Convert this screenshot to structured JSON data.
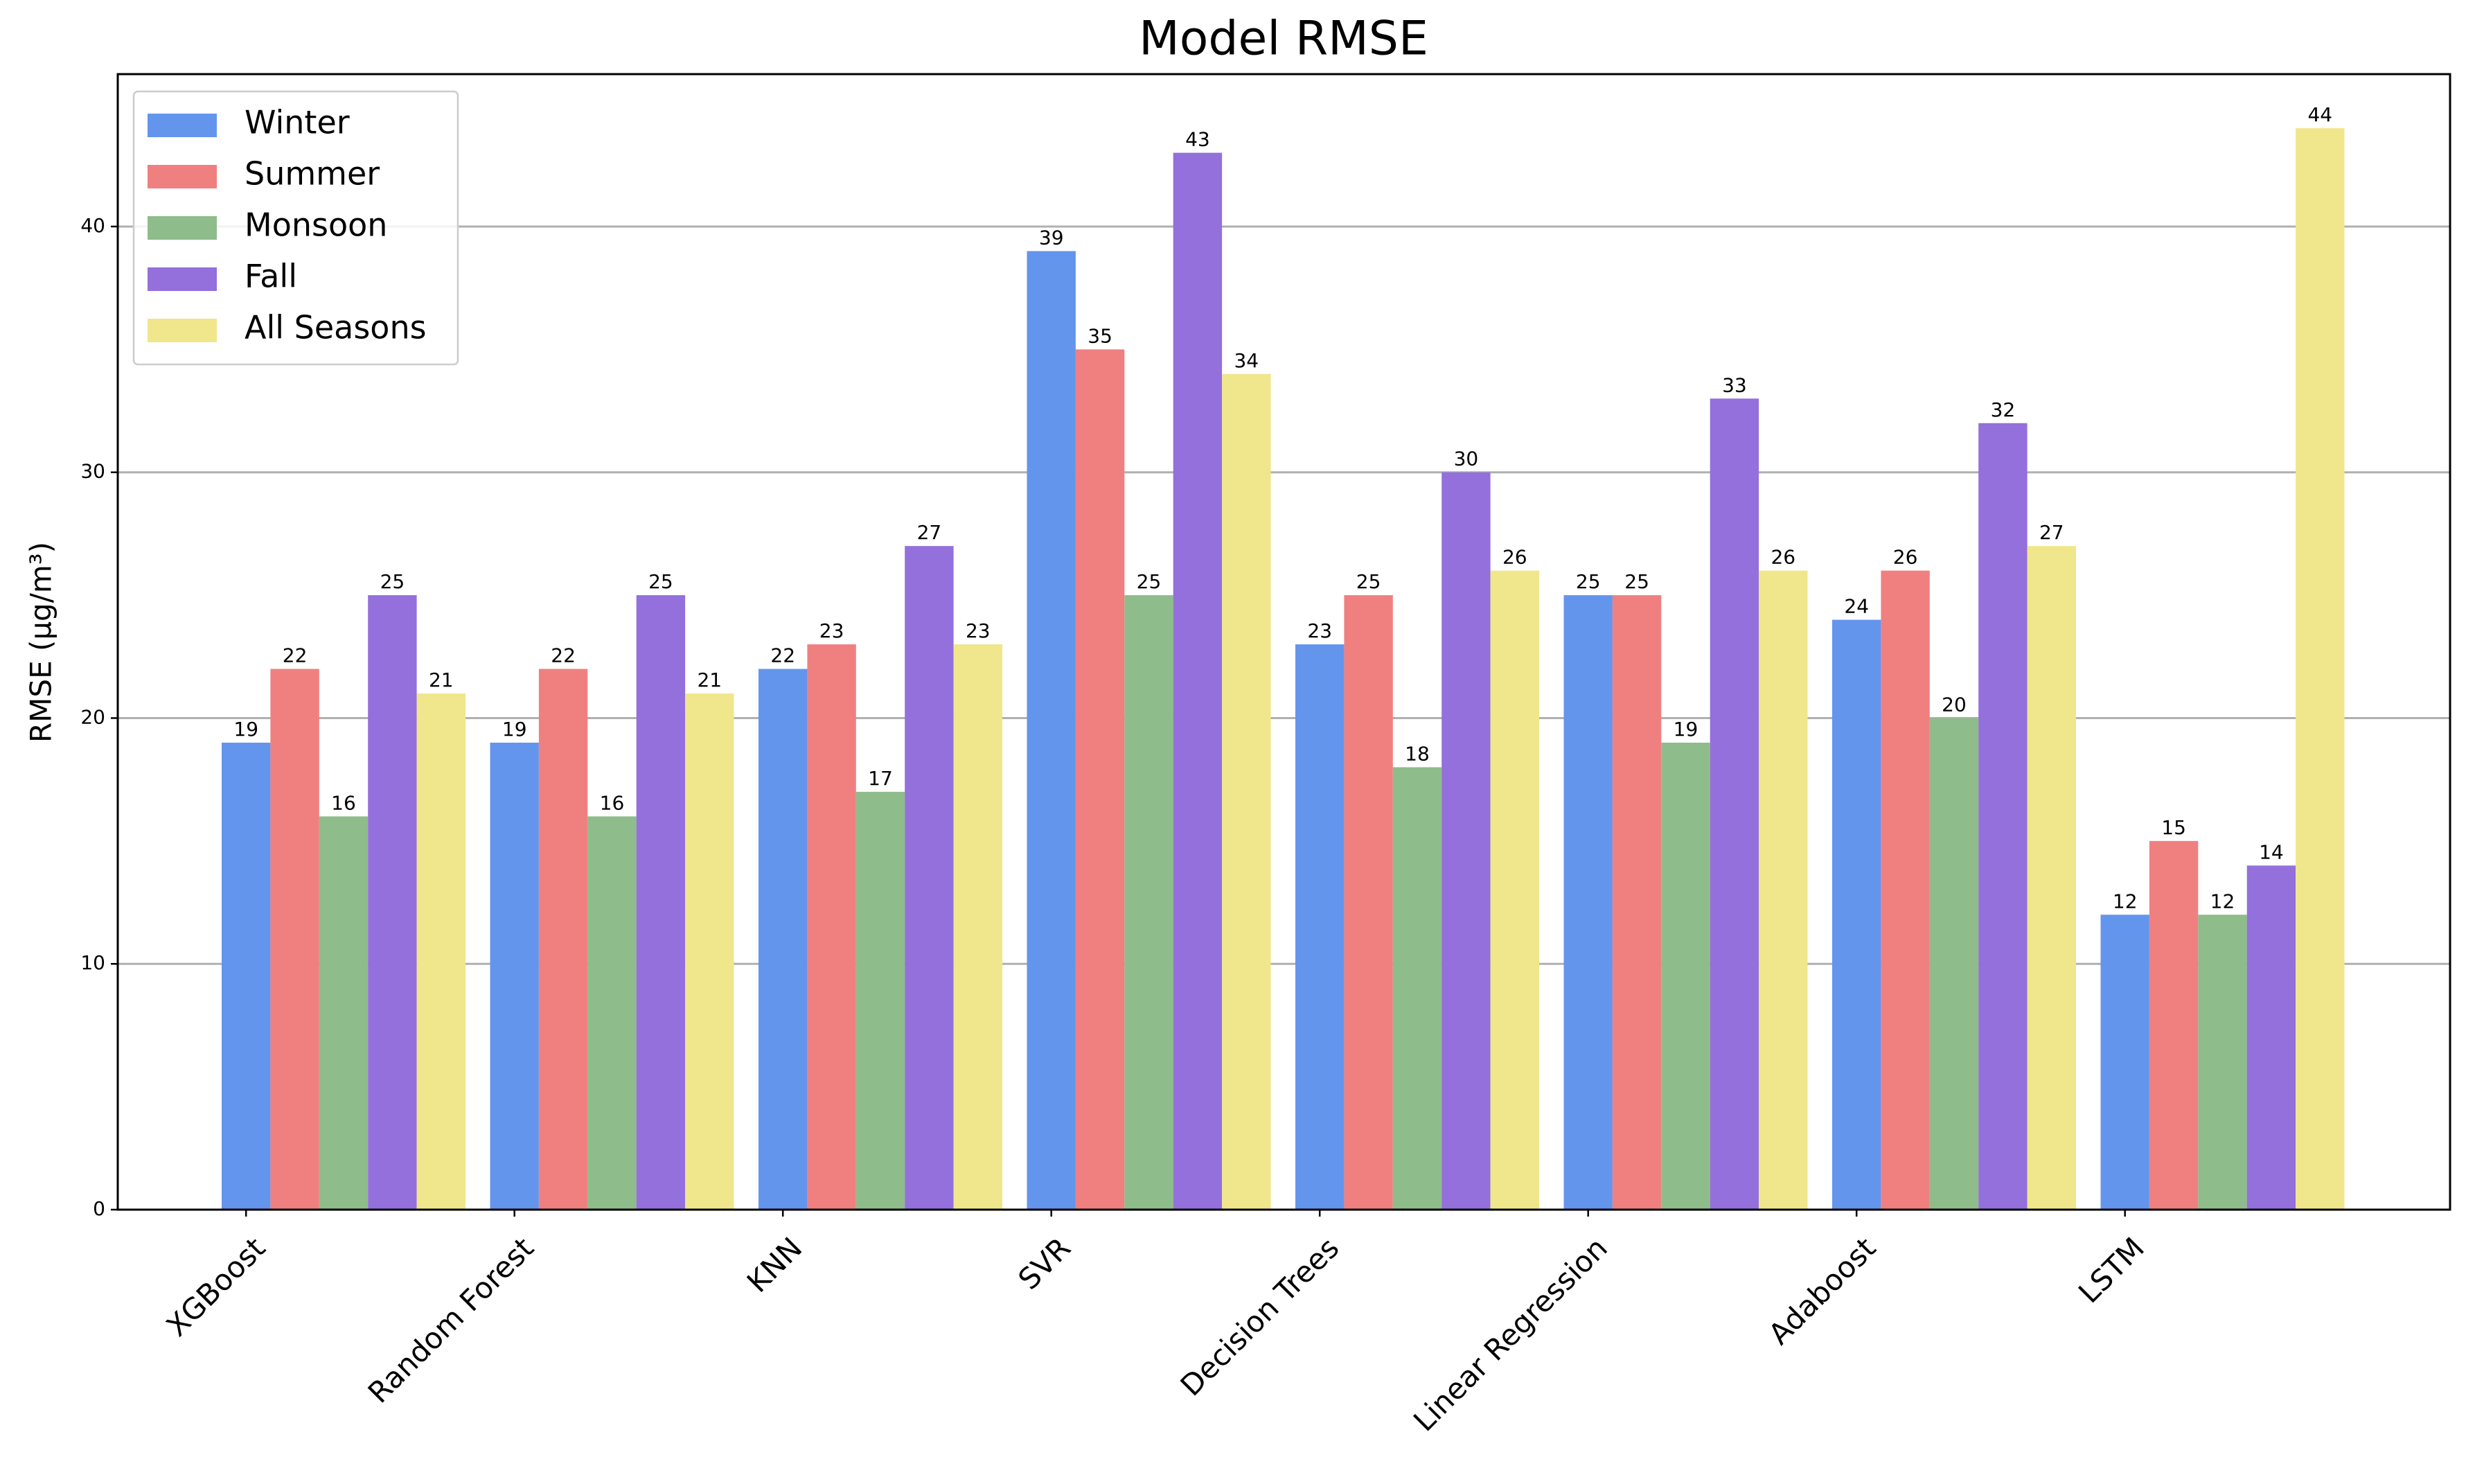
{
  "chart_data": {
    "type": "bar",
    "title": "Model RMSE",
    "y_label": "RMSE (µg/m³)",
    "categories": [
      "XGBoost",
      "Random Forest",
      "KNN",
      "SVR",
      "Decision Trees",
      "Linear Regression",
      "Adaboost",
      "LSTM"
    ],
    "series": [
      {
        "name": "Winter",
        "color": "#6495ed",
        "values": [
          19,
          19,
          22,
          39,
          23,
          25,
          24,
          12
        ]
      },
      {
        "name": "Summer",
        "color": "#f08080",
        "values": [
          22,
          22,
          23,
          35,
          25,
          25,
          26,
          15
        ]
      },
      {
        "name": "Monsoon",
        "color": "#8fbc8b",
        "values": [
          16,
          16,
          17,
          25,
          18,
          19,
          20,
          12
        ]
      },
      {
        "name": "Fall",
        "color": "#9370db",
        "values": [
          25,
          25,
          27,
          43,
          30,
          33,
          32,
          14
        ]
      },
      {
        "name": "All Seasons",
        "color": "#f0e68c",
        "values": [
          21,
          21,
          23,
          34,
          26,
          26,
          27,
          44
        ]
      }
    ],
    "ylim": [
      0,
      46.2
    ],
    "yticks": [
      0,
      10,
      20,
      30,
      40
    ],
    "grid": true,
    "legend": "upper left"
  }
}
